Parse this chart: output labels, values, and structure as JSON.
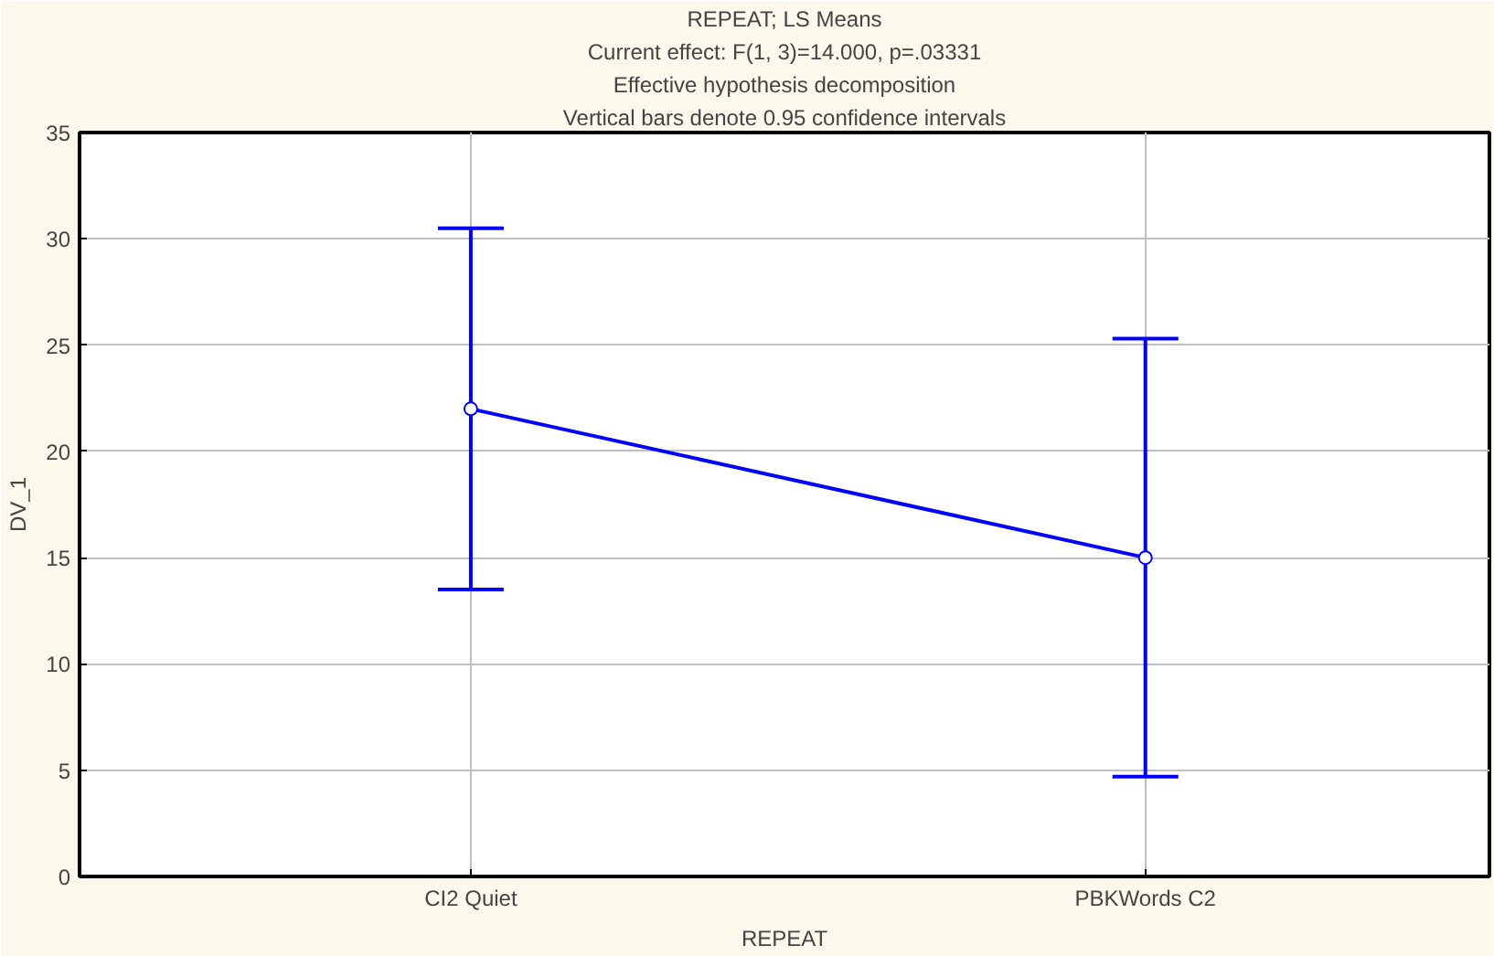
{
  "chart_data": {
    "type": "line",
    "title": "REPEAT; LS Means",
    "annotations": [
      "Current effect: F(1, 3)=14.000, p=.03331",
      "Effective hypothesis decomposition",
      "Vertical bars denote 0.95 confidence intervals"
    ],
    "xlabel": "REPEAT",
    "ylabel": "DV_1",
    "categories": [
      "CI2 Quiet",
      "PBKWords C2"
    ],
    "series": [
      {
        "color": "#0000ff",
        "values": [
          22,
          15
        ],
        "errors": [
          [
            13.5,
            30.5
          ],
          [
            4.7,
            25.3
          ]
        ]
      }
    ],
    "ylim": [
      0,
      35
    ],
    "yticks": [
      0,
      5,
      10,
      15,
      20,
      25,
      30,
      35
    ],
    "grid": true,
    "marker": "circle",
    "line_style": "solid"
  }
}
